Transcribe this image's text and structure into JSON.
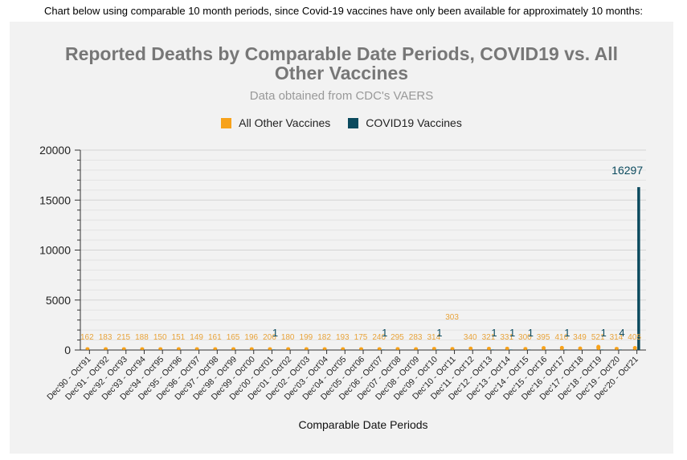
{
  "intro_text": "Chart below using comparable 10 month periods, since Covid-19 vaccines have only been available for approximately 10 months:",
  "colors": {
    "other": "#f7a21b",
    "covid": "#0b4a5e",
    "panel": "#f2f2f2"
  },
  "chart_data": {
    "type": "bar",
    "title": "Reported Deaths by Comparable Date Periods, COVID19 vs. All Other Vaccines",
    "subtitle": "Data obtained from CDC's VAERS",
    "xlabel": "Comparable Date Periods",
    "ylabel": "",
    "ylim": [
      0,
      20000
    ],
    "yticks": [
      "0",
      "5000",
      "10000",
      "15000",
      "20000"
    ],
    "grid": true,
    "legend_position": "top",
    "categories": [
      "Dec'90 - Oct'91",
      "Dec'91 - Oct'92",
      "Dec'92 - Oct'93",
      "Dec'93 - Oct'94",
      "Dec'94 - Oct'95",
      "Dec'95 - Oct'96",
      "Dec'96 - Oct'97",
      "Dec'97 - Oct'98",
      "Dec'98 - Oct'99",
      "Dec'99 - Oct'00",
      "Dec'00 - Oct'01",
      "Dec'01 - Oct'02",
      "Dec'02 - Oct'03",
      "Dec'03 - Oct'04",
      "Dec'04 - Oct'05",
      "Dec'05 - Oct'06",
      "Dec'06 - Oct'07",
      "Dec'07 - Oct'08",
      "Dec'08 - Oct'09",
      "Dec'09 - Oct'10",
      "Dec'10 - Oct'11",
      "Dec'11 - Oct'12",
      "Dec'12 - Oct'13",
      "Dec'13 - Oct'14",
      "Dec'14 - Oct'15",
      "Dec'15 - Oct'16",
      "Dec'16 - Oct'17",
      "Dec'17 - Oct'18",
      "Dec'18 - Oct'19",
      "Dec'19 - Oct'20",
      "Dec'20 - Oct'21"
    ],
    "series": [
      {
        "name": "All Other Vaccines",
        "values": [
          162,
          183,
          215,
          188,
          150,
          151,
          149,
          161,
          165,
          196,
          206,
          180,
          199,
          182,
          193,
          175,
          240,
          295,
          283,
          314,
          303,
          340,
          321,
          331,
          300,
          395,
          416,
          349,
          521,
          314,
          405
        ],
        "labels": [
          "162",
          "183",
          "215",
          "188",
          "150",
          "151",
          "149",
          "161",
          "165",
          "196",
          "206",
          "180",
          "199",
          "182",
          "193",
          "175",
          "240",
          "295",
          "283",
          "314",
          "303",
          "340",
          "321",
          "331",
          "300",
          "395",
          "416",
          "349",
          "521",
          "314",
          "405"
        ]
      },
      {
        "name": "COVID19 Vaccines",
        "values": [
          0,
          0,
          0,
          0,
          0,
          0,
          0,
          0,
          0,
          0,
          1,
          0,
          0,
          0,
          0,
          0,
          1,
          0,
          0,
          1,
          0,
          0,
          1,
          1,
          1,
          0,
          1,
          0,
          1,
          4,
          16297
        ],
        "labels": [
          "",
          "",
          "",
          "",
          "",
          "",
          "",
          "",
          "",
          "",
          "1",
          "",
          "",
          "",
          "",
          "",
          "1",
          "",
          "",
          "1",
          "",
          "",
          "1",
          "1",
          "1",
          "",
          "1",
          "",
          "1",
          "4",
          "16297"
        ]
      }
    ]
  }
}
